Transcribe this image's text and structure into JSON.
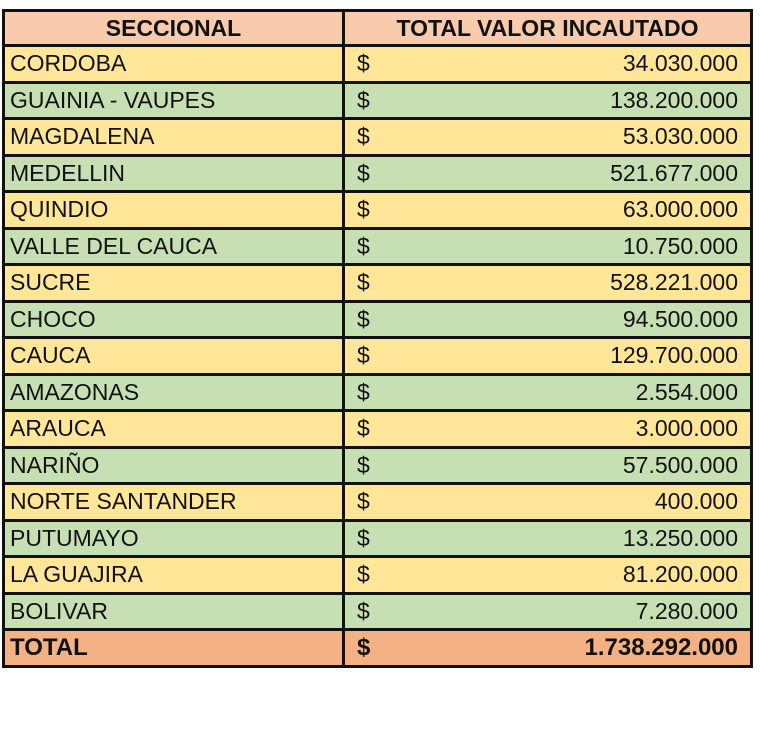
{
  "table": {
    "header": [
      "SECCIONAL",
      "TOTAL VALOR INCAUTADO"
    ],
    "rows": [
      [
        "CORDOBA",
        "$",
        "34.030.000"
      ],
      [
        "GUAINIA - VAUPES",
        "$",
        "138.200.000"
      ],
      [
        "MAGDALENA",
        "$",
        "53.030.000"
      ],
      [
        "MEDELLIN",
        "$",
        "521.677.000"
      ],
      [
        "QUINDIO",
        "$",
        "63.000.000"
      ],
      [
        "VALLE DEL CAUCA",
        "$",
        "10.750.000"
      ],
      [
        "SUCRE",
        "$",
        "528.221.000"
      ],
      [
        "CHOCO",
        "$",
        "94.500.000"
      ],
      [
        "CAUCA",
        "$",
        "129.700.000"
      ],
      [
        "AMAZONAS",
        "$",
        "2.554.000"
      ],
      [
        "ARAUCA",
        "$",
        "3.000.000"
      ],
      [
        "NARIÑO",
        "$",
        "57.500.000"
      ],
      [
        "NORTE SANTANDER",
        "$",
        "400.000"
      ],
      [
        "PUTUMAYO",
        "$",
        "13.250.000"
      ],
      [
        "LA GUAJIRA",
        "$",
        "81.200.000"
      ],
      [
        "BOLIVAR",
        "$",
        "7.280.000"
      ]
    ],
    "total": [
      "TOTAL",
      "$",
      "1.738.292.000"
    ]
  }
}
